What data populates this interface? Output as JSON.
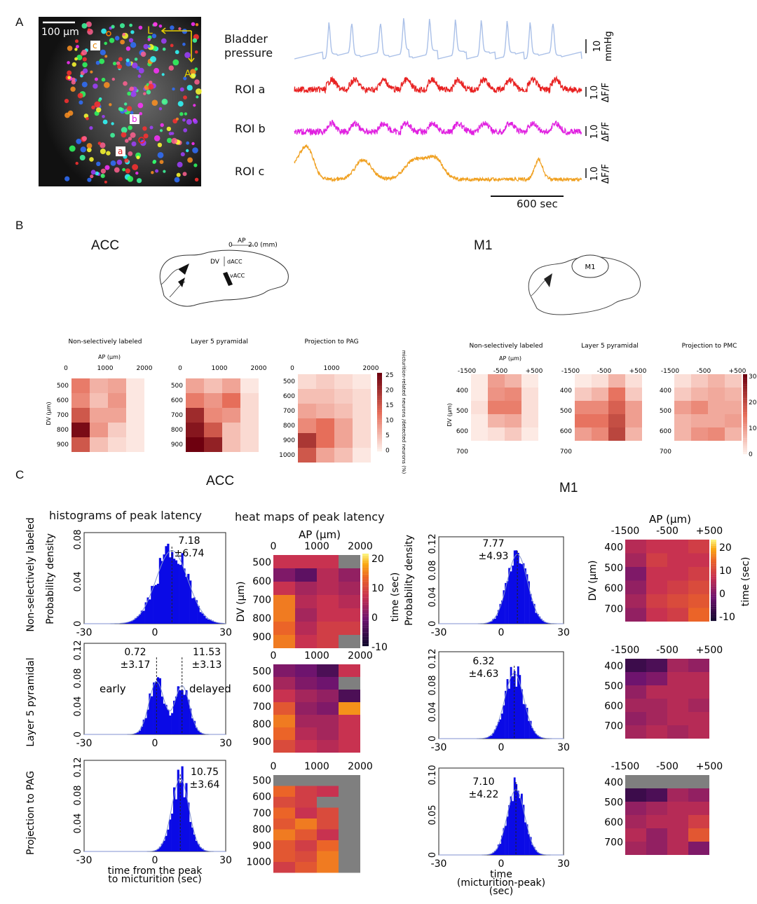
{
  "panels": {
    "a": "A",
    "b": "B",
    "c": "C"
  },
  "panelA": {
    "scalebar": "100 μm",
    "roi_letters": [
      "c",
      "b",
      "a"
    ],
    "orient_L": "L",
    "orient_A": "A",
    "trace_labels": [
      "Bladder pressure",
      "ROI a",
      "ROI b",
      "ROI c"
    ],
    "trace_label_lines": [
      [
        "Bladder",
        "pressure"
      ],
      [
        "ROI a"
      ],
      [
        "ROI b"
      ],
      [
        "ROI c"
      ]
    ],
    "trace_colors": [
      "#aac0e8",
      "#e82020",
      "#e020e0",
      "#f0a020"
    ],
    "scale_values": [
      "10",
      "1.0",
      "1.0",
      "1.0"
    ],
    "scale_units": [
      "mmHg",
      "ΔF/F",
      "ΔF/F",
      "ΔF/F"
    ],
    "time_scale": "600 sec"
  },
  "panelB": {
    "acc": {
      "title": "ACC",
      "diagram_ap": "AP",
      "diagram_ap_ticks": [
        "0",
        "2.0 (mm)"
      ],
      "diagram_dv": "DV",
      "diagram_areas": [
        "dACC",
        "vACC"
      ],
      "maps": [
        {
          "title": "Non-selectively labeled"
        },
        {
          "title": "Layer 5 pyramidal"
        },
        {
          "title": "Projection to PAG"
        }
      ],
      "ap_label": "AP (μm)",
      "dv_label": "DV (μm)",
      "x_ticks": [
        "0",
        "1000",
        "2000"
      ],
      "y_ticks_a": [
        "500",
        "600",
        "700",
        "800",
        "900"
      ],
      "y_ticks_c": [
        "500",
        "600",
        "700",
        "800",
        "900",
        "1000"
      ],
      "cbar_ticks": [
        "25",
        "20",
        "15",
        "10",
        "5",
        "0"
      ],
      "cbar_label": "micturition-related neurons /detected neurons (%)"
    },
    "m1": {
      "title": "M1",
      "diagram_area": "M1",
      "maps": [
        {
          "title": "Non-selectively labeled"
        },
        {
          "title": "Layer 5 pyramidal"
        },
        {
          "title": "Projection to PMC"
        }
      ],
      "ap_label": "AP (μm)",
      "dv_label": "DV (μm)",
      "x_ticks": [
        "-1500",
        "-500",
        "+500"
      ],
      "y_ticks": [
        "400",
        "500",
        "600",
        "700"
      ],
      "cbar_ticks": [
        "30",
        "20",
        "10",
        "0"
      ]
    }
  },
  "panelC": {
    "acc_title": "ACC",
    "m1_title": "M1",
    "hist_title": "histograms of peak latency",
    "heat_title": "heat maps of peak latency",
    "row_labels": [
      "Non-selectively labeled",
      "Layer 5 pyramidal",
      "Projection to PAG"
    ],
    "ylabel": "Probability density",
    "hist_x_ticks": [
      "-30",
      "0",
      "30"
    ],
    "acc_xlabel": [
      "time from the peak",
      "to micturition (sec)"
    ],
    "m1_xlabel": [
      "time",
      "(micturition-peak)",
      "(sec)"
    ],
    "acc_hists": [
      {
        "y_ticks": [
          "0.08",
          "0.04",
          "0"
        ],
        "annotations": [
          {
            "mean": "7.18",
            "sd": "±6.74"
          }
        ]
      },
      {
        "y_ticks": [
          "0.12",
          "0.08",
          "0.04",
          "0"
        ],
        "annotations": [
          {
            "mean": "0.72",
            "sd": "±3.17"
          },
          {
            "mean": "11.53",
            "sd": "±3.13"
          }
        ],
        "labels": [
          "early",
          "delayed"
        ]
      },
      {
        "y_ticks": [
          "0.12",
          "0.08",
          "0.04",
          "0"
        ],
        "annotations": [
          {
            "mean": "10.75",
            "sd": "±3.64"
          }
        ]
      }
    ],
    "m1_hists": [
      {
        "y_ticks": [
          "0.12",
          "0.08",
          "0.04",
          "0"
        ],
        "annotations": [
          {
            "mean": "7.77",
            "sd": "±4.93"
          }
        ]
      },
      {
        "y_ticks": [
          "0.12",
          "0.08",
          "0.04",
          "0"
        ],
        "annotations": [
          {
            "mean": "6.32",
            "sd": "±4.63"
          }
        ]
      },
      {
        "y_ticks": [
          "0.10",
          "0.05",
          "0"
        ],
        "annotations": [
          {
            "mean": "7.10",
            "sd": "±4.22"
          }
        ]
      }
    ],
    "acc_heat": {
      "ap_label": "AP (μm)",
      "dv_label": "DV (μm)",
      "x_ticks": [
        "0",
        "1000",
        "2000"
      ],
      "y_ticks_a": [
        "500",
        "600",
        "700",
        "800",
        "900"
      ],
      "y_ticks_b": [
        "500",
        "600",
        "700",
        "800",
        "900"
      ],
      "y_ticks_c": [
        "500",
        "600",
        "700",
        "800",
        "900",
        "1000"
      ],
      "cbar_ticks": [
        "20",
        "10",
        "0",
        "-10"
      ],
      "cbar_label": "time (sec)"
    },
    "m1_heat": {
      "ap_label": "AP (μm)",
      "dv_label": "DV (μm)",
      "x_ticks": [
        "-1500",
        "-500",
        "+500"
      ],
      "y_ticks": [
        "400",
        "500",
        "600",
        "700"
      ],
      "cbar_ticks": [
        "20",
        "10",
        "0",
        "-10"
      ],
      "cbar_label": "time (sec)"
    }
  },
  "colors": {
    "hist_blue": "#0a0ae6",
    "grey_cell": "#7f7f7f"
  }
}
